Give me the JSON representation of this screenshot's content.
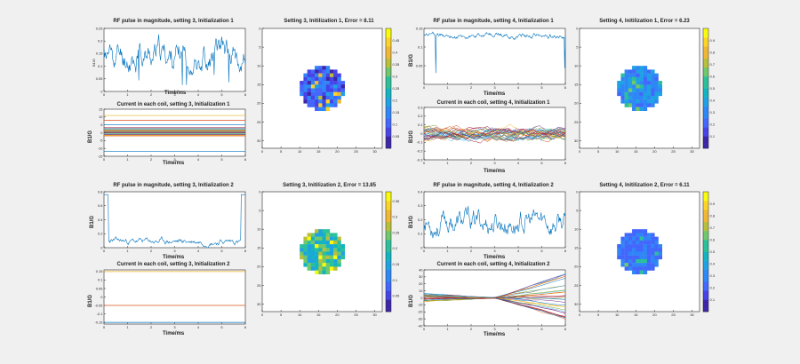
{
  "figure": {
    "background": "#f0f0f0",
    "colormap": [
      "#3e26a8",
      "#4743e8",
      "#4367fd",
      "#2f86f6",
      "#1ea2e3",
      "#12b4c2",
      "#2bc09a",
      "#6fc86b",
      "#b8bf3b",
      "#f0b734",
      "#fbd427",
      "#f9fb0e"
    ]
  },
  "chart_data": [
    {
      "id": "rf3_1",
      "type": "line",
      "title": "RF pulse in magnitude, setting 3, Initialization 1",
      "xlabel": "Time/ms",
      "ylabel": "B1/G",
      "xlim": [
        0,
        6
      ],
      "ylim": [
        0,
        0.25
      ],
      "xticks": [
        0,
        1,
        2,
        3,
        4,
        5,
        6
      ],
      "yticks": [
        0,
        0.05,
        0.1,
        0.15,
        0.2,
        0.25
      ],
      "series": [
        {
          "color": "#0072bd",
          "seed": 11,
          "base": 0.14,
          "amp": 0.08,
          "dips": 0.5,
          "spike_end": 0
        }
      ]
    },
    {
      "id": "cur3_1",
      "type": "line",
      "title": "Current in each coil, setting 3, Initialization 1",
      "xlabel": "Time/ms",
      "ylabel": "B1/G",
      "xlim": [
        0,
        6
      ],
      "ylim": [
        -15,
        15
      ],
      "xticks": [
        0,
        1,
        2,
        3,
        4,
        5,
        6
      ],
      "yticks": [
        -15,
        -10,
        -5,
        0,
        5,
        10,
        15
      ],
      "flat_levels": [
        -12,
        -2,
        -1.6,
        -1.2,
        -0.8,
        -0.4,
        0,
        0.4,
        0.8,
        1.2,
        1.6,
        2,
        2.6,
        3.2,
        5,
        8,
        11
      ]
    },
    {
      "id": "rf3_2",
      "type": "line",
      "title": "RF pulse in magnitude, setting 3, Initialization 2",
      "xlabel": "Time/ms",
      "ylabel": "B1/G",
      "xlim": [
        0,
        6
      ],
      "ylim": [
        0,
        0.8
      ],
      "xticks": [
        0,
        1,
        2,
        3,
        4,
        5,
        6
      ],
      "yticks": [
        0,
        0.2,
        0.4,
        0.6,
        0.8
      ],
      "series": [
        {
          "color": "#0072bd",
          "seed": 23,
          "base": 0.09,
          "amp": 0.06,
          "dips": 0,
          "spike_end": 1
        }
      ]
    },
    {
      "id": "cur3_2",
      "type": "line",
      "title": "Current in each coil, setting 3, Initialization 2",
      "xlabel": "Time/ms",
      "ylabel": "B1/G",
      "xlim": [
        0,
        6
      ],
      "ylim": [
        -0.16,
        0.16
      ],
      "xticks": [
        0,
        1,
        2,
        3,
        4,
        5,
        6
      ],
      "yticks": [
        -0.15,
        -0.1,
        -0.05,
        0,
        0.05,
        0.1,
        0.15
      ],
      "flat_levels": [
        -0.15,
        -0.05,
        0.15
      ]
    },
    {
      "id": "rf4_1",
      "type": "line",
      "title": "RF pulse in magnitude, setting 4, Initialization 1",
      "xlabel": "Time/ms",
      "ylabel": "B1/G",
      "xlim": [
        0,
        6
      ],
      "ylim": [
        0,
        0.15
      ],
      "xticks": [
        0,
        1,
        2,
        3,
        4,
        5,
        6
      ],
      "yticks": [
        0.05,
        0.1,
        0.15
      ],
      "series": [
        {
          "color": "#0072bd",
          "seed": 37,
          "base": 0.13,
          "amp": 0.01,
          "dips": 0.04,
          "spike_end": 0
        }
      ]
    },
    {
      "id": "cur4_1",
      "type": "line",
      "title": "Current in each coil, setting 4, Initialization 1",
      "xlabel": "Time/ms",
      "ylabel": "B1/G",
      "xlim": [
        0,
        6
      ],
      "ylim": [
        -0.3,
        0.3
      ],
      "xticks": [
        0,
        1,
        2,
        3,
        4,
        5,
        6
      ],
      "yticks": [
        -0.3,
        -0.2,
        -0.1,
        0,
        0.1,
        0.2,
        0.3
      ],
      "noisy_lines": 30
    },
    {
      "id": "rf4_2",
      "type": "line",
      "title": "RF pulse in magnitude, setting 4, Initialization 2",
      "xlabel": "Time/ms",
      "ylabel": "B1/G",
      "xlim": [
        0,
        6
      ],
      "ylim": [
        0,
        0.4
      ],
      "xticks": [
        0,
        1,
        2,
        3,
        4,
        5,
        6
      ],
      "yticks": [
        0,
        0.1,
        0.2,
        0.3,
        0.4
      ],
      "series": [
        {
          "color": "#0072bd",
          "seed": 53,
          "base": 0.18,
          "amp": 0.12,
          "dips": 0,
          "spike_end": 0
        }
      ]
    },
    {
      "id": "cur4_2",
      "type": "line",
      "title": "Current in each coil, setting 4, Initialization 2",
      "xlabel": "Time/ms",
      "ylabel": "B1/G",
      "xlim": [
        0,
        6
      ],
      "ylim": [
        -40,
        40
      ],
      "xticks": [
        0,
        1,
        2,
        3,
        4,
        5,
        6
      ],
      "yticks": [
        -40,
        -30,
        -20,
        -10,
        0,
        10,
        20,
        30,
        40
      ],
      "diverging_lines": 30
    },
    {
      "id": "map3_1",
      "type": "heatmap",
      "title": "Setting 3, Initilization 1, Error = 8.11",
      "xlim": [
        0,
        32
      ],
      "ylim": [
        0,
        32
      ],
      "xticks": [
        0,
        5,
        10,
        15,
        20,
        25,
        30
      ],
      "yticks": [
        0,
        5,
        10,
        15,
        20,
        25,
        30
      ],
      "colorbar_ticks": [
        0.05,
        0.1,
        0.15,
        0.2,
        0.25,
        0.3,
        0.35,
        0.4,
        0.45
      ],
      "clim": [
        0,
        0.5
      ],
      "mean_level": 0.1,
      "seed": 101
    },
    {
      "id": "map3_2",
      "type": "heatmap",
      "title": "Setting 3, Initilization 2, Error = 13.85",
      "xlim": [
        0,
        32
      ],
      "ylim": [
        0,
        32
      ],
      "xticks": [
        0,
        5,
        10,
        15,
        20,
        25,
        30
      ],
      "yticks": [
        0,
        5,
        10,
        15,
        20,
        25,
        30
      ],
      "colorbar_ticks": [
        0.05,
        0.1,
        0.15,
        0.2,
        0.25,
        0.3,
        0.35
      ],
      "clim": [
        0,
        0.38
      ],
      "mean_level": 0.2,
      "seed": 202
    },
    {
      "id": "map4_1",
      "type": "heatmap",
      "title": "Setting 4, Initilization 1, Error = 6.23",
      "xlim": [
        0,
        32
      ],
      "ylim": [
        0,
        32
      ],
      "xticks": [
        0,
        5,
        10,
        15,
        20,
        25,
        30
      ],
      "yticks": [
        0,
        5,
        10,
        15,
        20,
        25,
        30
      ],
      "colorbar_ticks": [
        0.1,
        0.2,
        0.3,
        0.4,
        0.5,
        0.6,
        0.7,
        0.8,
        0.9
      ],
      "clim": [
        0,
        1
      ],
      "mean_level": 0.3,
      "seed": 303
    },
    {
      "id": "map4_2",
      "type": "heatmap",
      "title": "Setting 4, Initilization 2, Error = 6.11",
      "xlim": [
        0,
        32
      ],
      "ylim": [
        0,
        32
      ],
      "xticks": [
        0,
        5,
        10,
        15,
        20,
        25,
        30
      ],
      "yticks": [
        0,
        5,
        10,
        15,
        20,
        25,
        30
      ],
      "colorbar_ticks": [
        0.1,
        0.2,
        0.3,
        0.4,
        0.5,
        0.6,
        0.7,
        0.8,
        0.9
      ],
      "clim": [
        0,
        1
      ],
      "mean_level": 0.25,
      "seed": 404
    }
  ]
}
